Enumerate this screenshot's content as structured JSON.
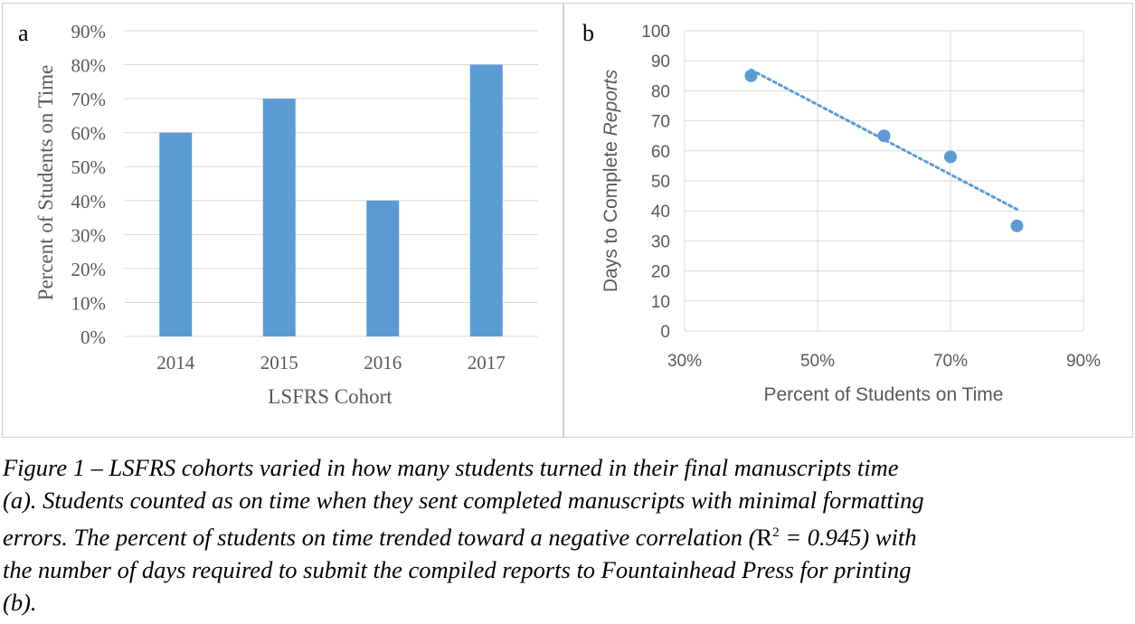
{
  "chart_data": [
    {
      "panel_label": "a",
      "type": "bar",
      "categories": [
        "2014",
        "2015",
        "2016",
        "2017"
      ],
      "values": [
        60,
        70,
        40,
        80
      ],
      "xlabel": "LSFRS Cohort",
      "ylabel": "Percent of Students on Time",
      "ylim": [
        0,
        90
      ],
      "yticks": [
        "0%",
        "10%",
        "20%",
        "30%",
        "40%",
        "50%",
        "60%",
        "70%",
        "80%",
        "90%"
      ],
      "grid": true,
      "bar_color": "#5b9bd5"
    },
    {
      "panel_label": "b",
      "type": "scatter",
      "x": [
        40,
        60,
        70,
        80
      ],
      "y": [
        85,
        65,
        58,
        35
      ],
      "trendline": {
        "type": "linear",
        "style": "dotted",
        "from": [
          40,
          87
        ],
        "to": [
          80,
          40.5
        ]
      },
      "xlabel": "Percent of Students on Time",
      "ylabel_prefix": "Days to Complete ",
      "ylabel_italic": "Reports",
      "xlim": [
        30,
        90
      ],
      "ylim": [
        0,
        100
      ],
      "xticks": [
        "30%",
        "50%",
        "70%",
        "90%"
      ],
      "yticks": [
        "0",
        "10",
        "20",
        "30",
        "40",
        "50",
        "60",
        "70",
        "80",
        "90",
        "100"
      ],
      "grid": true,
      "marker_color": "#5b9bd5"
    }
  ],
  "caption": {
    "line1": "Figure 1 – LSFRS cohorts varied in how many students turned in their final manuscripts time",
    "line2": "(a).  Students counted as on time when they sent completed manuscripts with minimal formatting",
    "line3_part1": "errors.  The percent of students on time trended toward a negative correlation (",
    "line3_r": "R",
    "line3_sup": "2",
    "line3_part2": " = 0.945) with",
    "line4": "the number of days required to submit the compiled reports to Fountainhead Press for printing",
    "line5": "(b)."
  }
}
